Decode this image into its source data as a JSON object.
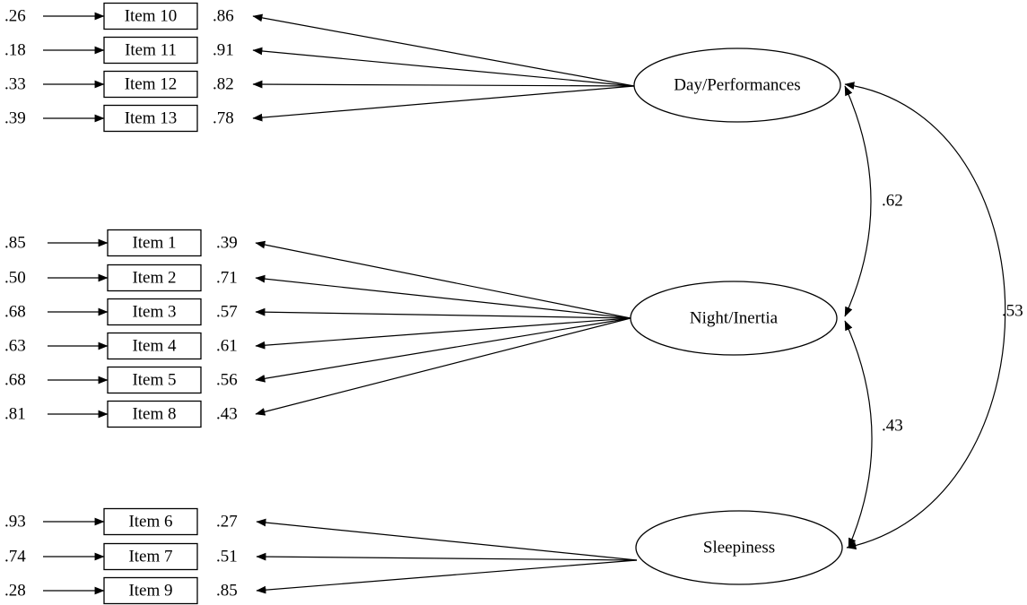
{
  "factors": [
    {
      "name": "Day/Performances",
      "items": [
        {
          "error": ".26",
          "label": "Item 10",
          "loading": ".86"
        },
        {
          "error": ".18",
          "label": "Item 11",
          "loading": ".91"
        },
        {
          "error": ".33",
          "label": "Item 12",
          "loading": ".82"
        },
        {
          "error": ".39",
          "label": "Item 13",
          "loading": ".78"
        }
      ]
    },
    {
      "name": "Night/Inertia",
      "items": [
        {
          "error": ".85",
          "label": "Item 1",
          "loading": ".39"
        },
        {
          "error": ".50",
          "label": "Item 2",
          "loading": ".71"
        },
        {
          "error": ".68",
          "label": "Item 3",
          "loading": ".57"
        },
        {
          "error": ".63",
          "label": "Item 4",
          "loading": ".61"
        },
        {
          "error": ".68",
          "label": "Item 5",
          "loading": ".56"
        },
        {
          "error": ".81",
          "label": "Item 8",
          "loading": ".43"
        }
      ]
    },
    {
      "name": "Sleepiness",
      "items": [
        {
          "error": ".93",
          "label": "Item 6",
          "loading": ".27"
        },
        {
          "error": ".74",
          "label": "Item 7",
          "loading": ".51"
        },
        {
          "error": ".28",
          "label": "Item 9",
          "loading": ".85"
        }
      ]
    }
  ],
  "correlations": [
    {
      "from": "Day/Performances",
      "to": "Night/Inertia",
      "value": ".62"
    },
    {
      "from": "Night/Inertia",
      "to": "Sleepiness",
      "value": ".43"
    },
    {
      "from": "Day/Performances",
      "to": "Sleepiness",
      "value": ".53"
    }
  ]
}
